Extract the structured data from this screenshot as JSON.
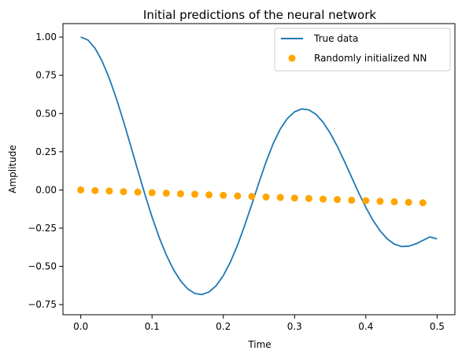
{
  "chart_data": {
    "type": "line+scatter",
    "title": "Initial predictions of the neural network",
    "xlabel": "Time",
    "ylabel": "Amplitude",
    "xlim": [
      -0.025,
      0.525
    ],
    "ylim": [
      -0.816,
      1.088
    ],
    "xticks": [
      0.0,
      0.1,
      0.2,
      0.3,
      0.4,
      0.5
    ],
    "xtick_labels": [
      "0.0",
      "0.1",
      "0.2",
      "0.3",
      "0.4",
      "0.5"
    ],
    "yticks": [
      1.0,
      0.75,
      0.5,
      0.25,
      0.0,
      -0.25,
      -0.5,
      -0.75
    ],
    "ytick_labels": [
      "1.00",
      "0.75",
      "0.50",
      "0.25",
      "0.00",
      "−0.25",
      "−0.50",
      "−0.75"
    ],
    "grid": false,
    "legend_position": "top-right",
    "line_series": {
      "name": "True data",
      "color": "#1f77b4",
      "x": [
        0.0,
        0.01,
        0.02,
        0.03,
        0.04,
        0.05,
        0.06,
        0.07,
        0.08,
        0.09,
        0.1,
        0.11,
        0.12,
        0.13,
        0.14,
        0.15,
        0.16,
        0.17,
        0.18,
        0.19,
        0.2,
        0.21,
        0.22,
        0.23,
        0.24,
        0.25,
        0.26,
        0.27,
        0.28,
        0.29,
        0.3,
        0.31,
        0.32,
        0.33,
        0.34,
        0.35,
        0.36,
        0.37,
        0.38,
        0.39,
        0.4,
        0.41,
        0.42,
        0.43,
        0.44,
        0.45,
        0.46,
        0.47,
        0.48,
        0.49,
        0.5
      ],
      "y": [
        1.0,
        0.981,
        0.927,
        0.842,
        0.73,
        0.597,
        0.448,
        0.29,
        0.129,
        -0.029,
        -0.177,
        -0.31,
        -0.425,
        -0.52,
        -0.594,
        -0.647,
        -0.677,
        -0.684,
        -0.667,
        -0.626,
        -0.56,
        -0.471,
        -0.36,
        -0.232,
        -0.094,
        0.048,
        0.184,
        0.303,
        0.399,
        0.468,
        0.511,
        0.53,
        0.524,
        0.495,
        0.443,
        0.372,
        0.285,
        0.187,
        0.084,
        -0.019,
        -0.114,
        -0.198,
        -0.267,
        -0.32,
        -0.354,
        -0.37,
        -0.368,
        -0.353,
        -0.33,
        -0.307,
        -0.32
      ]
    },
    "scatter_series": {
      "name": "Randomly initialized NN",
      "color": "#ffa500",
      "x": [
        0.0,
        0.02,
        0.04,
        0.06,
        0.08,
        0.1,
        0.12,
        0.14,
        0.16,
        0.18,
        0.2,
        0.22,
        0.24,
        0.26,
        0.28,
        0.3,
        0.32,
        0.34,
        0.36,
        0.38,
        0.4,
        0.42,
        0.44,
        0.46,
        0.48
      ],
      "y": [
        0.0,
        -0.004,
        -0.007,
        -0.011,
        -0.014,
        -0.018,
        -0.021,
        -0.025,
        -0.028,
        -0.032,
        -0.035,
        -0.039,
        -0.042,
        -0.046,
        -0.049,
        -0.053,
        -0.056,
        -0.06,
        -0.063,
        -0.067,
        -0.07,
        -0.074,
        -0.077,
        -0.081,
        -0.084
      ]
    }
  }
}
